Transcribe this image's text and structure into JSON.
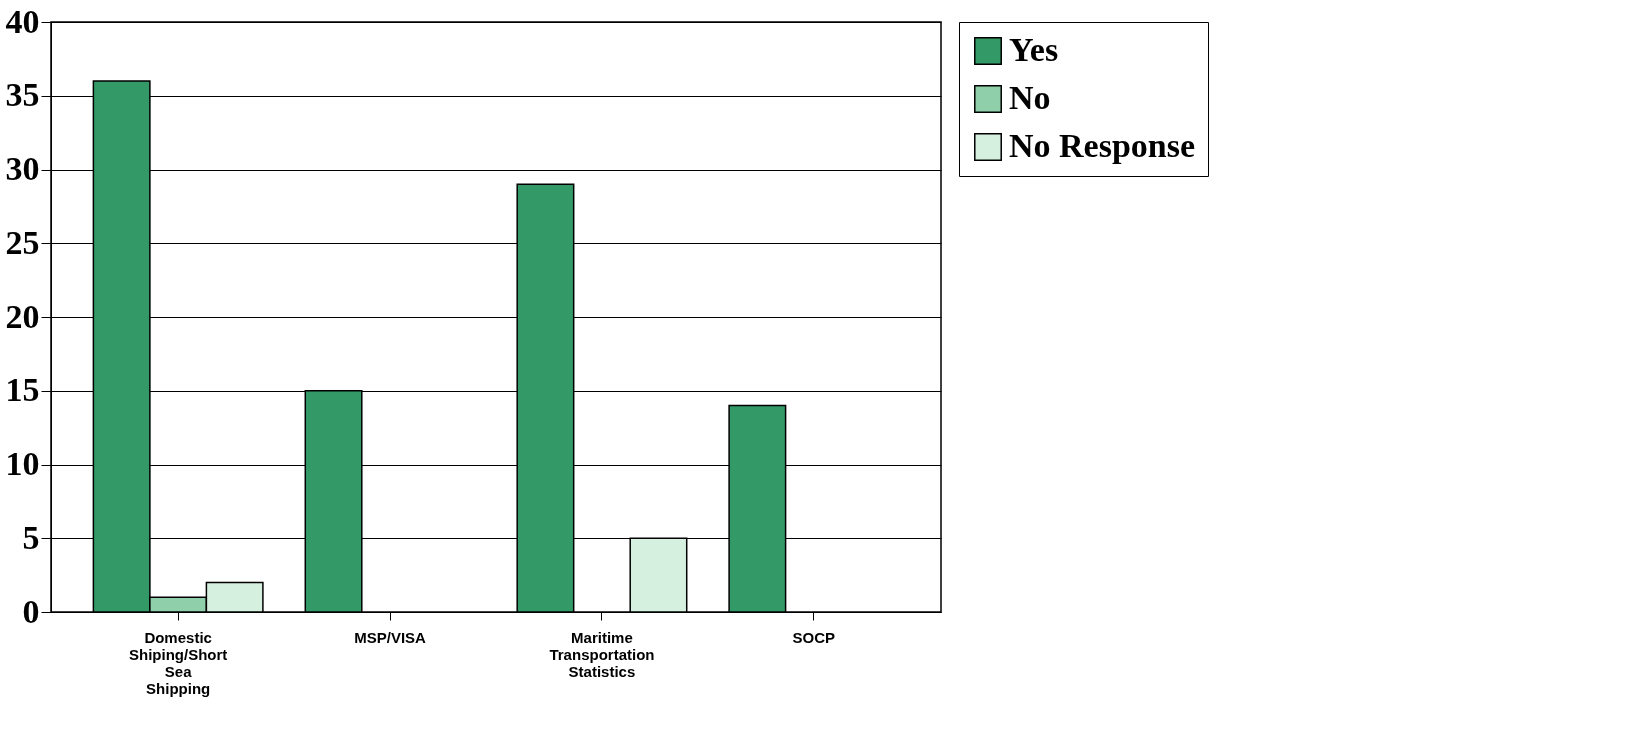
{
  "chart_data": {
    "type": "bar",
    "categories": [
      "Domestic Shiping/Short Sea Shipping",
      "MSP/VISA",
      "Maritime Transportation Statistics",
      "SOCP"
    ],
    "series": [
      {
        "name": "Yes",
        "color": "#339966",
        "values": [
          36,
          15,
          29,
          14
        ]
      },
      {
        "name": "No",
        "color": "#8fd0aa",
        "values": [
          1,
          0,
          0,
          0
        ]
      },
      {
        "name": "No Response",
        "color": "#d6f0e0",
        "values": [
          2,
          0,
          5,
          0
        ]
      }
    ],
    "ylim": [
      0,
      40
    ],
    "yticks": [
      0,
      5,
      10,
      15,
      20,
      25,
      30,
      35,
      40
    ],
    "grid": "y",
    "legend": "right"
  }
}
